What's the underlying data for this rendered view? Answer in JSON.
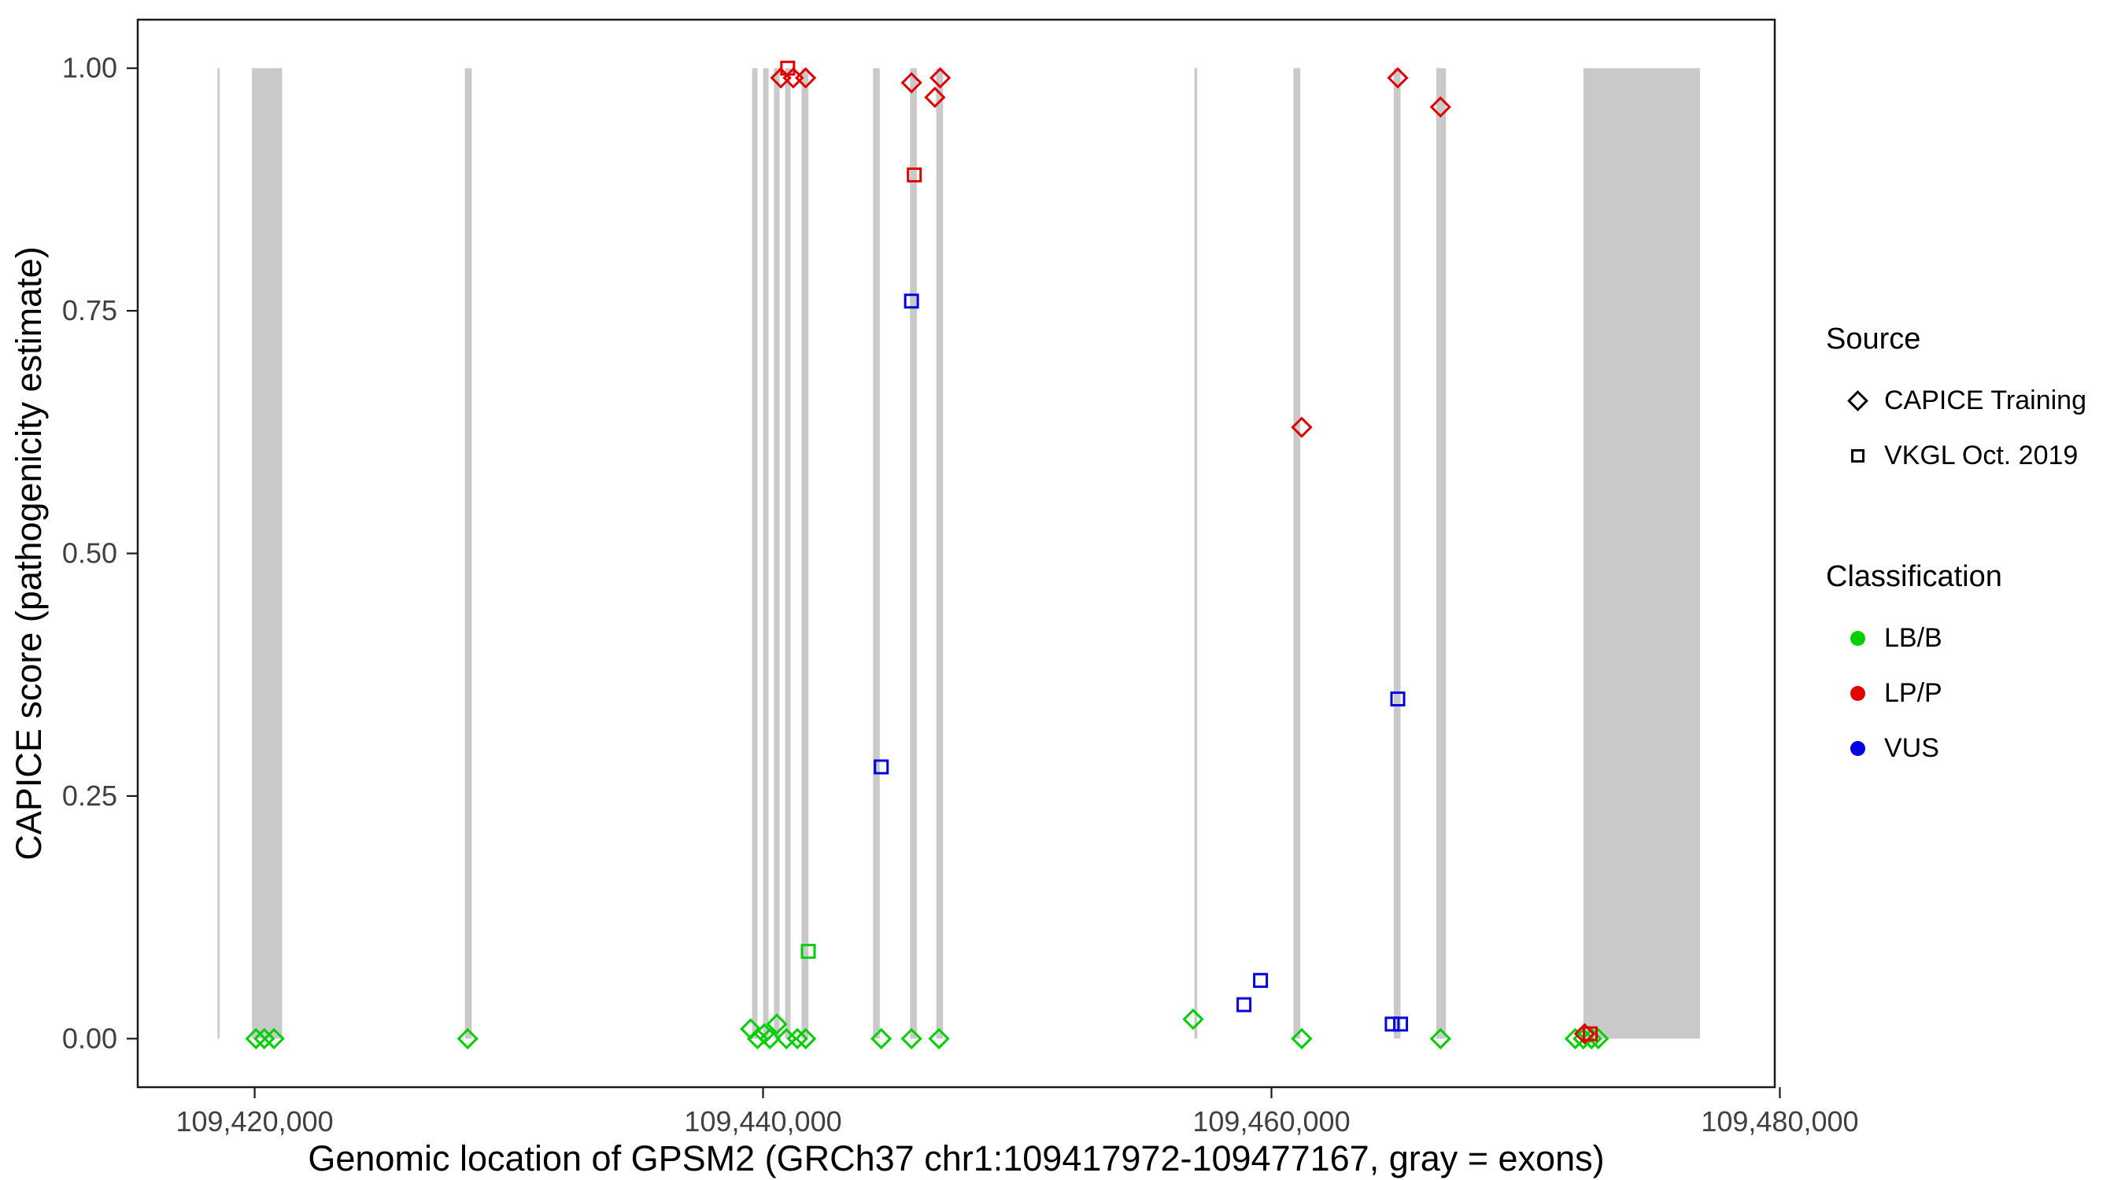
{
  "chart_data": {
    "type": "scatter",
    "title": "",
    "xlabel": "Genomic location of GPSM2 (GRCh37 chr1:109417972-109477167, gray = exons)",
    "ylabel": "CAPICE score (pathogenicity estimate)",
    "xlim": [
      109415400,
      109479800
    ],
    "ylim": [
      -0.05,
      1.05
    ],
    "grid": false,
    "legend_position": "right",
    "panel_border_color": "#1a1a1a",
    "exon_color": "#c9c9c9",
    "x_ticks": [
      {
        "value": 109420000,
        "label": "109,420,000"
      },
      {
        "value": 109440000,
        "label": "109,440,000"
      },
      {
        "value": 109460000,
        "label": "109,460,000"
      },
      {
        "value": 109480000,
        "label": "109,480,000"
      }
    ],
    "y_ticks": [
      {
        "value": 0.0,
        "label": "0.00"
      },
      {
        "value": 0.25,
        "label": "0.25"
      },
      {
        "value": 0.5,
        "label": "0.50"
      },
      {
        "value": 0.75,
        "label": "0.75"
      },
      {
        "value": 1.0,
        "label": "1.00"
      }
    ],
    "classification_colors": {
      "LB/B": "#00d000",
      "LP/P": "#e00000",
      "VUS": "#0000e0"
    },
    "source_shapes": {
      "CAPICE Training": "diamond",
      "VKGL Oct. 2019": "square"
    },
    "exons": [
      [
        109418540,
        109418580
      ],
      [
        109419890,
        109421080
      ],
      [
        109428270,
        109428540
      ],
      [
        109439570,
        109439780
      ],
      [
        109440000,
        109440215
      ],
      [
        109440430,
        109440650
      ],
      [
        109440865,
        109441080
      ],
      [
        109441515,
        109441785
      ],
      [
        109444325,
        109444590
      ],
      [
        109445780,
        109446050
      ],
      [
        109446810,
        109447080
      ],
      [
        109456970,
        109457080
      ],
      [
        109460865,
        109461135
      ],
      [
        109464810,
        109465080
      ],
      [
        109466485,
        109466865
      ],
      [
        109472270,
        109476860
      ]
    ],
    "points": [
      {
        "x": 109420050,
        "y": 0.0,
        "source": "CAPICE Training",
        "classification": "LB/B"
      },
      {
        "x": 109420380,
        "y": 0.0,
        "source": "CAPICE Training",
        "classification": "LB/B"
      },
      {
        "x": 109420760,
        "y": 0.0,
        "source": "CAPICE Training",
        "classification": "LB/B"
      },
      {
        "x": 109428380,
        "y": 0.0,
        "source": "CAPICE Training",
        "classification": "LB/B"
      },
      {
        "x": 109439510,
        "y": 0.01,
        "source": "CAPICE Training",
        "classification": "LB/B"
      },
      {
        "x": 109439780,
        "y": 0.0,
        "source": "CAPICE Training",
        "classification": "LB/B"
      },
      {
        "x": 109440050,
        "y": 0.005,
        "source": "CAPICE Training",
        "classification": "LB/B"
      },
      {
        "x": 109440270,
        "y": 0.0,
        "source": "CAPICE Training",
        "classification": "LB/B"
      },
      {
        "x": 109440540,
        "y": 0.015,
        "source": "CAPICE Training",
        "classification": "LB/B"
      },
      {
        "x": 109440920,
        "y": 0.0,
        "source": "CAPICE Training",
        "classification": "LB/B"
      },
      {
        "x": 109441350,
        "y": 0.0,
        "source": "CAPICE Training",
        "classification": "LB/B"
      },
      {
        "x": 109441675,
        "y": 0.0,
        "source": "CAPICE Training",
        "classification": "LB/B"
      },
      {
        "x": 109444650,
        "y": 0.0,
        "source": "CAPICE Training",
        "classification": "LB/B"
      },
      {
        "x": 109445840,
        "y": 0.0,
        "source": "CAPICE Training",
        "classification": "LB/B"
      },
      {
        "x": 109446920,
        "y": 0.0,
        "source": "CAPICE Training",
        "classification": "LB/B"
      },
      {
        "x": 109456920,
        "y": 0.02,
        "source": "CAPICE Training",
        "classification": "LB/B"
      },
      {
        "x": 109461190,
        "y": 0.0,
        "source": "CAPICE Training",
        "classification": "LB/B"
      },
      {
        "x": 109466650,
        "y": 0.0,
        "source": "CAPICE Training",
        "classification": "LB/B"
      },
      {
        "x": 109471950,
        "y": 0.0,
        "source": "CAPICE Training",
        "classification": "LB/B"
      },
      {
        "x": 109472270,
        "y": 0.0,
        "source": "CAPICE Training",
        "classification": "LB/B"
      },
      {
        "x": 109472590,
        "y": 0.0,
        "source": "CAPICE Training",
        "classification": "LB/B"
      },
      {
        "x": 109472860,
        "y": 0.0,
        "source": "CAPICE Training",
        "classification": "LB/B"
      },
      {
        "x": 109441780,
        "y": 0.09,
        "source": "VKGL Oct. 2019",
        "classification": "LB/B"
      },
      {
        "x": 109444650,
        "y": 0.28,
        "source": "VKGL Oct. 2019",
        "classification": "VUS"
      },
      {
        "x": 109445840,
        "y": 0.76,
        "source": "VKGL Oct. 2019",
        "classification": "VUS"
      },
      {
        "x": 109458920,
        "y": 0.035,
        "source": "VKGL Oct. 2019",
        "classification": "VUS"
      },
      {
        "x": 109459570,
        "y": 0.06,
        "source": "VKGL Oct. 2019",
        "classification": "VUS"
      },
      {
        "x": 109464970,
        "y": 0.35,
        "source": "VKGL Oct. 2019",
        "classification": "VUS"
      },
      {
        "x": 109464750,
        "y": 0.015,
        "source": "VKGL Oct. 2019",
        "classification": "VUS"
      },
      {
        "x": 109465080,
        "y": 0.015,
        "source": "VKGL Oct. 2019",
        "classification": "VUS"
      },
      {
        "x": 109440700,
        "y": 0.99,
        "source": "CAPICE Training",
        "classification": "LP/P"
      },
      {
        "x": 109441190,
        "y": 0.99,
        "source": "CAPICE Training",
        "classification": "LP/P"
      },
      {
        "x": 109441675,
        "y": 0.99,
        "source": "CAPICE Training",
        "classification": "LP/P"
      },
      {
        "x": 109445840,
        "y": 0.985,
        "source": "CAPICE Training",
        "classification": "LP/P"
      },
      {
        "x": 109446760,
        "y": 0.97,
        "source": "CAPICE Training",
        "classification": "LP/P"
      },
      {
        "x": 109446970,
        "y": 0.99,
        "source": "CAPICE Training",
        "classification": "LP/P"
      },
      {
        "x": 109461190,
        "y": 0.63,
        "source": "CAPICE Training",
        "classification": "LP/P"
      },
      {
        "x": 109464970,
        "y": 0.99,
        "source": "CAPICE Training",
        "classification": "LP/P"
      },
      {
        "x": 109466650,
        "y": 0.96,
        "source": "CAPICE Training",
        "classification": "LP/P"
      },
      {
        "x": 109472320,
        "y": 0.005,
        "source": "CAPICE Training",
        "classification": "LP/P"
      },
      {
        "x": 109440970,
        "y": 1.0,
        "source": "VKGL Oct. 2019",
        "classification": "LP/P"
      },
      {
        "x": 109445950,
        "y": 0.89,
        "source": "VKGL Oct. 2019",
        "classification": "LP/P"
      },
      {
        "x": 109472540,
        "y": 0.005,
        "source": "VKGL Oct. 2019",
        "classification": "LP/P"
      }
    ]
  },
  "legend": {
    "source": {
      "title": "Source",
      "items": [
        {
          "label": "CAPICE Training",
          "shape": "diamond"
        },
        {
          "label": "VKGL Oct. 2019",
          "shape": "square"
        }
      ]
    },
    "classification": {
      "title": "Classification",
      "items": [
        {
          "label": "LB/B",
          "color": "#00d000"
        },
        {
          "label": "LP/P",
          "color": "#e00000"
        },
        {
          "label": "VUS",
          "color": "#0000e0"
        }
      ]
    }
  }
}
